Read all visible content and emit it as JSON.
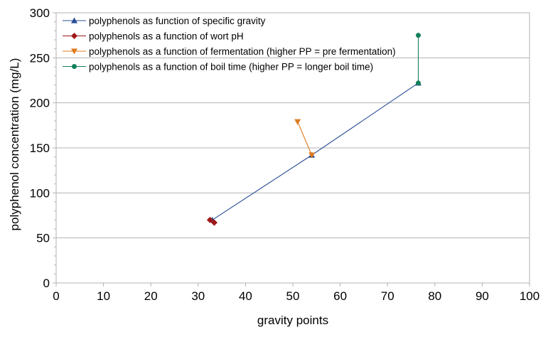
{
  "chart_data": {
    "type": "scatter",
    "title": "",
    "xlabel": "gravity points",
    "ylabel": "polyphenol concentration (mg/L)",
    "xlim": [
      0,
      100
    ],
    "ylim": [
      0,
      300
    ],
    "x_ticks": [
      0,
      10,
      20,
      30,
      40,
      50,
      60,
      70,
      80,
      90,
      100
    ],
    "y_ticks": [
      0,
      50,
      100,
      150,
      200,
      250,
      300
    ],
    "grid": "horizontal",
    "legend_position": "top-left",
    "series": [
      {
        "name": "polyphenols as function of specific gravity",
        "marker": "triangle-up",
        "color": "#2a4d96",
        "points": [
          [
            33,
            70
          ],
          [
            54,
            142
          ],
          [
            76.5,
            222
          ]
        ]
      },
      {
        "name": "polyphenols as a function of wort pH",
        "marker": "diamond",
        "color": "#a01818",
        "points": [
          [
            32.5,
            70
          ],
          [
            33.4,
            67
          ]
        ]
      },
      {
        "name": "polyphenols as a function of fermentation (higher PP = pre fermentation)",
        "marker": "triangle-down",
        "color": "#e07a1e",
        "points": [
          [
            51,
            179
          ],
          [
            54,
            142
          ]
        ]
      },
      {
        "name": "polyphenols as a function of boil time (higher PP = longer boil time)",
        "marker": "circle",
        "color": "#14805a",
        "points": [
          [
            76.5,
            275
          ],
          [
            76.5,
            222
          ]
        ]
      }
    ]
  }
}
